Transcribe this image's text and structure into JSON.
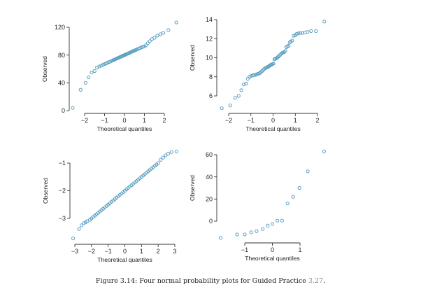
{
  "colors": {
    "point": "#5a9fc2",
    "axis": "#333333",
    "caption_ref": "#8a8a8a"
  },
  "chart_data": [
    {
      "type": "scatter",
      "title": "",
      "xlabel": "Theoretical quantiles",
      "ylabel": "Observed",
      "xticks": [
        {
          "v": -2,
          "label": "−2"
        },
        {
          "v": -1,
          "label": "−1"
        },
        {
          "v": 0,
          "label": "0"
        },
        {
          "v": 1,
          "label": "1"
        },
        {
          "v": 2,
          "label": "2"
        }
      ],
      "yticks": [
        {
          "v": 0,
          "label": "0"
        },
        {
          "v": 40,
          "label": "40"
        },
        {
          "v": 80,
          "label": "80"
        },
        {
          "v": 120,
          "label": "120"
        }
      ],
      "x": [
        -2.6,
        -2.2,
        -1.95,
        -1.8,
        -1.65,
        -1.5,
        -1.38,
        -1.27,
        -1.17,
        -1.08,
        -0.99,
        -0.92,
        -0.85,
        -0.78,
        -0.72,
        -0.66,
        -0.6,
        -0.55,
        -0.5,
        -0.45,
        -0.4,
        -0.35,
        -0.3,
        -0.25,
        -0.2,
        -0.16,
        -0.12,
        -0.08,
        -0.04,
        -0.01,
        0.01,
        0.04,
        0.08,
        0.12,
        0.16,
        0.2,
        0.25,
        0.3,
        0.35,
        0.4,
        0.45,
        0.5,
        0.55,
        0.6,
        0.66,
        0.72,
        0.78,
        0.85,
        0.92,
        0.99,
        1.08,
        1.17,
        1.27,
        1.38,
        1.5,
        1.65,
        1.8,
        1.95,
        2.2,
        2.6
      ],
      "y": [
        4,
        30,
        40,
        48,
        55,
        57,
        62.1,
        63.5,
        64.8,
        66,
        67.1,
        68,
        69,
        69.9,
        70.6,
        71.4,
        72.2,
        72.9,
        73.5,
        74.2,
        74.8,
        75.5,
        76.1,
        76.8,
        77.4,
        77.9,
        78.4,
        79,
        79.5,
        79.9,
        80.1,
        80.5,
        81,
        81.6,
        82.1,
        82.6,
        83.2,
        83.9,
        84.6,
        85.3,
        85.9,
        86.5,
        87.2,
        87.8,
        88.6,
        89.4,
        90.1,
        91,
        91.9,
        92.5,
        94,
        97,
        100,
        103,
        105,
        108,
        110,
        112,
        116,
        127
      ]
    },
    {
      "type": "scatter",
      "title": "",
      "xlabel": "Theoretical quantiles",
      "ylabel": "Observed",
      "xticks": [
        {
          "v": -2,
          "label": "−2"
        },
        {
          "v": -1,
          "label": "−1"
        },
        {
          "v": 0,
          "label": "0"
        },
        {
          "v": 1,
          "label": "1"
        },
        {
          "v": 2,
          "label": "2"
        }
      ],
      "yticks": [
        {
          "v": 6,
          "label": "6"
        },
        {
          "v": 8,
          "label": "8"
        },
        {
          "v": 10,
          "label": "10"
        },
        {
          "v": 12,
          "label": "12"
        },
        {
          "v": 14,
          "label": "14"
        }
      ],
      "x": [
        -2.31,
        -1.93,
        -1.71,
        -1.55,
        -1.43,
        -1.32,
        -1.22,
        -1.14,
        -1.06,
        -0.99,
        -0.92,
        -0.86,
        -0.8,
        -0.75,
        -0.7,
        -0.64,
        -0.59,
        -0.55,
        -0.5,
        -0.45,
        -0.41,
        -0.36,
        -0.32,
        -0.27,
        -0.23,
        -0.19,
        -0.15,
        -0.1,
        -0.06,
        -0.02,
        0.02,
        0.06,
        0.1,
        0.15,
        0.19,
        0.23,
        0.27,
        0.32,
        0.36,
        0.41,
        0.45,
        0.5,
        0.55,
        0.59,
        0.64,
        0.7,
        0.75,
        0.8,
        0.86,
        0.92,
        0.99,
        1.06,
        1.14,
        1.22,
        1.32,
        1.43,
        1.55,
        1.71,
        1.93,
        2.31
      ],
      "y": [
        4.7,
        5.0,
        5.8,
        6.0,
        6.6,
        7.2,
        7.3,
        7.8,
        8.0,
        8.1,
        8.15,
        8.2,
        8.2,
        8.25,
        8.3,
        8.35,
        8.4,
        8.5,
        8.6,
        8.7,
        8.8,
        8.9,
        8.95,
        9.0,
        9.05,
        9.1,
        9.2,
        9.25,
        9.3,
        9.35,
        9.4,
        9.85,
        9.9,
        9.95,
        10.0,
        10.1,
        10.2,
        10.3,
        10.4,
        10.5,
        10.55,
        10.6,
        10.7,
        11.1,
        11.2,
        11.25,
        11.6,
        11.7,
        11.8,
        12.3,
        12.35,
        12.5,
        12.55,
        12.6,
        12.6,
        12.65,
        12.7,
        12.8,
        12.8,
        13.8
      ]
    },
    {
      "type": "scatter",
      "title": "",
      "xlabel": "Theoretical quantiles",
      "ylabel": "Observed",
      "xticks": [
        {
          "v": -3,
          "label": "−3"
        },
        {
          "v": -2,
          "label": "−2"
        },
        {
          "v": -1,
          "label": "−1"
        },
        {
          "v": 0,
          "label": "0"
        },
        {
          "v": 1,
          "label": "1"
        },
        {
          "v": 2,
          "label": "2"
        },
        {
          "v": 3,
          "label": "3"
        }
      ],
      "yticks": [
        {
          "v": -3,
          "label": "−3"
        },
        {
          "v": -2,
          "label": "−2"
        },
        {
          "v": -1,
          "label": "−1"
        }
      ],
      "x": [
        -3.1,
        -2.75,
        -2.6,
        -2.45,
        -2.35,
        -2.25,
        -2.1,
        -2.0,
        -1.9,
        -1.8,
        -1.7,
        -1.6,
        -1.5,
        -1.4,
        -1.3,
        -1.2,
        -1.1,
        -1.0,
        -0.9,
        -0.8,
        -0.7,
        -0.6,
        -0.5,
        -0.4,
        -0.3,
        -0.2,
        -0.1,
        0.0,
        0.1,
        0.2,
        0.3,
        0.4,
        0.5,
        0.6,
        0.7,
        0.8,
        0.9,
        1.0,
        1.1,
        1.2,
        1.3,
        1.4,
        1.5,
        1.6,
        1.7,
        1.8,
        1.9,
        2.0,
        2.15,
        2.3,
        2.45,
        2.6,
        2.8,
        3.1
      ],
      "y": [
        -3.72,
        -3.38,
        -3.25,
        -3.17,
        -3.14,
        -3.1,
        -3.05,
        -3.0,
        -2.95,
        -2.9,
        -2.85,
        -2.8,
        -2.75,
        -2.7,
        -2.65,
        -2.6,
        -2.55,
        -2.5,
        -2.45,
        -2.4,
        -2.35,
        -2.3,
        -2.25,
        -2.2,
        -2.15,
        -2.1,
        -2.05,
        -2.0,
        -1.95,
        -1.9,
        -1.85,
        -1.8,
        -1.75,
        -1.7,
        -1.65,
        -1.6,
        -1.55,
        -1.5,
        -1.45,
        -1.4,
        -1.35,
        -1.3,
        -1.25,
        -1.2,
        -1.15,
        -1.1,
        -1.05,
        -1.0,
        -0.88,
        -0.8,
        -0.72,
        -0.66,
        -0.6,
        -0.58
      ]
    },
    {
      "type": "scatter",
      "title": "",
      "xlabel": "Theoretical quantiles",
      "ylabel": "Observed",
      "xticks": [
        {
          "v": -1,
          "label": "−1"
        },
        {
          "v": 0,
          "label": "0"
        },
        {
          "v": 1,
          "label": "1"
        }
      ],
      "yticks": [
        {
          "v": 0,
          "label": "0"
        },
        {
          "v": 20,
          "label": "20"
        },
        {
          "v": 40,
          "label": "40"
        },
        {
          "v": 60,
          "label": "60"
        }
      ],
      "x": [
        -1.87,
        -1.28,
        -1.0,
        -0.77,
        -0.57,
        -0.35,
        -0.17,
        0,
        0.18,
        0.35,
        0.55,
        0.75,
        0.98,
        1.28,
        1.87
      ],
      "y": [
        -15,
        -12,
        -12,
        -10,
        -9,
        -7,
        -4,
        -2.5,
        0.5,
        0.5,
        16,
        22,
        30,
        45,
        63
      ]
    }
  ],
  "caption": {
    "text": "Figure 3.14: Four normal probability plots for Guided Practice ",
    "ref": "3.27",
    "end": "."
  }
}
